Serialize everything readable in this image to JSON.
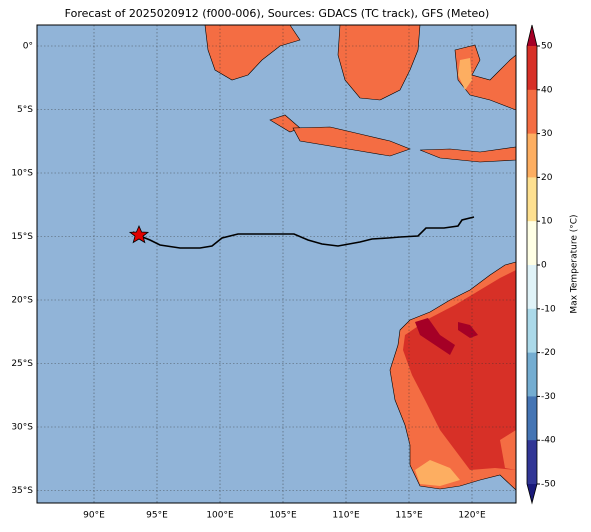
{
  "title": "Forecast of 2025020912 (f000-006), Sources: GDACS (TC track), GFS (Meteo)",
  "x_tick_labels": [
    "90°E",
    "95°E",
    "100°E",
    "105°E",
    "110°E",
    "115°E",
    "120°E"
  ],
  "y_tick_labels": [
    "0°",
    "5°S",
    "10°S",
    "15°S",
    "20°S",
    "25°S",
    "30°S",
    "35°S"
  ],
  "colorbar": {
    "label": "Max Temperature (°C)",
    "ticks": [
      50,
      40,
      30,
      20,
      10,
      0,
      -10,
      -20,
      -30,
      -40,
      -50
    ]
  }
}
